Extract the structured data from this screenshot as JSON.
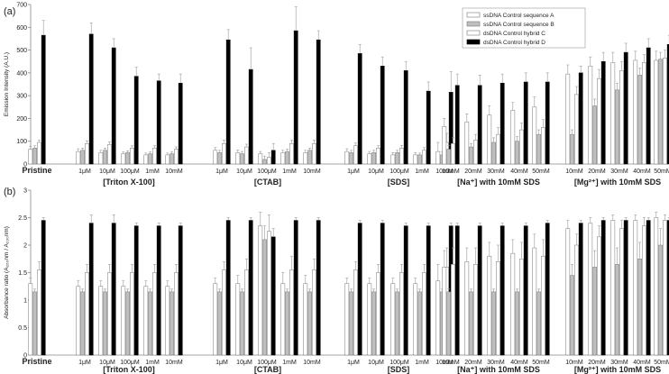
{
  "chart_data": [
    {
      "type": "bar",
      "panel_label": "(a)",
      "ylabel": "Emission Intensity (A.U.)",
      "ylim": [
        0,
        700
      ],
      "yticks": [
        0,
        100,
        200,
        300,
        400,
        500,
        600,
        700
      ],
      "gridlines": false,
      "legend": "top-right",
      "groups": [
        "Pristine",
        "[Triton X-100]",
        "[CTAB]",
        "[SDS]",
        "[Na⁺] with 10mM SDS",
        "[Mg²⁺] with 10mM SDS"
      ],
      "categories": [
        "Pristine",
        "1μM",
        "10μM",
        "100μM",
        "1mM",
        "10mM",
        "1μM",
        "10μM",
        "100μM",
        "1mM",
        "10mM",
        "1μM",
        "10μM",
        "100μM",
        "1mM",
        "10mM",
        "10mM",
        "20mM",
        "30mM",
        "40mM",
        "50mM",
        "10mM",
        "20mM",
        "30mM",
        "40mM",
        "50mM"
      ],
      "series": [
        {
          "name": "ssDNA Control sequence A",
          "color": "#ffffff",
          "values": [
            65,
            55,
            50,
            45,
            40,
            40,
            60,
            50,
            45,
            50,
            50,
            55,
            45,
            40,
            40,
            55,
            165,
            185,
            215,
            235,
            250,
            395,
            430,
            445,
            455,
            455
          ],
          "errors": [
            12,
            12,
            10,
            8,
            8,
            8,
            12,
            12,
            10,
            10,
            10,
            12,
            10,
            10,
            10,
            40,
            35,
            35,
            40,
            35,
            45,
            40,
            40,
            45,
            40,
            40
          ]
        },
        {
          "name": "ssDNA Control sequence B",
          "color": "#bfbfbf",
          "values": [
            70,
            60,
            60,
            50,
            45,
            45,
            50,
            45,
            20,
            55,
            60,
            50,
            50,
            50,
            40,
            40,
            65,
            75,
            95,
            100,
            130,
            130,
            255,
            325,
            390,
            460
          ],
          "errors": [
            10,
            10,
            10,
            8,
            8,
            8,
            10,
            10,
            15,
            10,
            10,
            10,
            10,
            10,
            8,
            15,
            15,
            15,
            20,
            20,
            20,
            20,
            30,
            30,
            30,
            30
          ]
        },
        {
          "name": "dsDNA Control hybrid C",
          "color": "#ffffff",
          "values": [
            95,
            90,
            85,
            70,
            70,
            65,
            90,
            75,
            30,
            90,
            90,
            80,
            70,
            70,
            60,
            95,
            90,
            105,
            130,
            150,
            160,
            305,
            375,
            410,
            445,
            465
          ],
          "errors": [
            10,
            12,
            12,
            10,
            10,
            10,
            15,
            12,
            20,
            15,
            15,
            12,
            10,
            12,
            12,
            40,
            25,
            25,
            30,
            30,
            35,
            35,
            40,
            40,
            35,
            35
          ]
        },
        {
          "name": "dsDNA Control hybrid D",
          "color": "#000000",
          "values": [
            565,
            570,
            510,
            385,
            365,
            355,
            545,
            415,
            60,
            585,
            545,
            485,
            430,
            410,
            320,
            315,
            345,
            345,
            355,
            360,
            360,
            400,
            450,
            490,
            510,
            525
          ],
          "errors": [
            65,
            50,
            40,
            40,
            30,
            40,
            45,
            95,
            30,
            105,
            40,
            40,
            40,
            40,
            40,
            90,
            50,
            45,
            40,
            40,
            40,
            30,
            40,
            40,
            40,
            40
          ]
        }
      ]
    },
    {
      "type": "bar",
      "panel_label": "(b)",
      "ylabel": "Absorbance ratio (A₂₆₀nm / A₂₃₀nm)",
      "ylim": [
        0,
        3
      ],
      "yticks": [
        0,
        0.5,
        1,
        1.5,
        2,
        2.5,
        3
      ],
      "gridlines": false,
      "groups": [
        "Pristine",
        "[Triton X-100]",
        "[CTAB]",
        "[SDS]",
        "[Na⁺] with 10mM SDS",
        "[Mg²⁺] with 10mM SDS"
      ],
      "categories": [
        "Pristine",
        "1μM",
        "10μM",
        "100μM",
        "1mM",
        "10mM",
        "1μM",
        "10μM",
        "100μM",
        "1mM",
        "10mM",
        "1μM",
        "10μM",
        "100μM",
        "1mM",
        "10mM",
        "10mM",
        "20mM",
        "30mM",
        "40mM",
        "50mM",
        "10mM",
        "20mM",
        "30mM",
        "40mM",
        "50mM"
      ],
      "series": [
        {
          "name": "ssDNA Control sequence A",
          "color": "#ffffff",
          "values": [
            1.3,
            1.25,
            1.25,
            1.25,
            1.25,
            1.25,
            1.3,
            1.3,
            2.35,
            1.3,
            1.3,
            1.3,
            1.3,
            1.3,
            1.3,
            1.35,
            1.6,
            1.7,
            1.8,
            1.85,
            1.95,
            2.3,
            2.4,
            2.45,
            2.45,
            2.5
          ],
          "errors": [
            0.1,
            0.1,
            0.1,
            0.1,
            0.1,
            0.1,
            0.1,
            0.15,
            0.25,
            0.2,
            0.15,
            0.1,
            0.1,
            0.1,
            0.1,
            0.3,
            0.3,
            0.25,
            0.25,
            0.25,
            0.25,
            0.15,
            0.1,
            0.1,
            0.1,
            0.1
          ]
        },
        {
          "name": "ssDNA Control sequence B",
          "color": "#bfbfbf",
          "values": [
            1.15,
            1.15,
            1.15,
            1.15,
            1.15,
            1.15,
            1.15,
            1.15,
            2.1,
            1.15,
            1.15,
            1.15,
            1.15,
            1.15,
            1.15,
            1.15,
            1.15,
            1.15,
            1.15,
            1.15,
            1.15,
            1.45,
            1.6,
            1.65,
            1.75,
            2.0
          ],
          "errors": [
            0.05,
            0.05,
            0.05,
            0.05,
            0.05,
            0.05,
            0.05,
            0.05,
            0.25,
            0.05,
            0.05,
            0.05,
            0.05,
            0.05,
            0.05,
            0.05,
            0.05,
            0.05,
            0.05,
            0.05,
            0.05,
            0.2,
            0.3,
            0.3,
            0.3,
            0.3
          ]
        },
        {
          "name": "dsDNA Control hybrid C",
          "color": "#ffffff",
          "values": [
            1.55,
            1.5,
            1.5,
            1.5,
            1.5,
            1.5,
            1.55,
            1.55,
            2.25,
            1.55,
            1.55,
            1.55,
            1.5,
            1.5,
            1.5,
            1.6,
            1.65,
            1.65,
            1.7,
            1.75,
            1.8,
            2.0,
            2.15,
            2.3,
            2.35,
            2.45
          ],
          "errors": [
            0.15,
            0.15,
            0.15,
            0.15,
            0.15,
            0.15,
            0.15,
            0.2,
            0.3,
            0.25,
            0.2,
            0.15,
            0.15,
            0.15,
            0.15,
            0.35,
            0.3,
            0.3,
            0.3,
            0.3,
            0.3,
            0.2,
            0.2,
            0.15,
            0.15,
            0.1
          ]
        },
        {
          "name": "dsDNA Control hybrid D",
          "color": "#000000",
          "values": [
            2.45,
            2.4,
            2.4,
            2.35,
            2.35,
            2.35,
            2.45,
            2.45,
            2.15,
            2.45,
            2.45,
            2.4,
            2.4,
            2.35,
            2.35,
            2.35,
            2.35,
            2.35,
            2.35,
            2.35,
            2.4,
            2.4,
            2.45,
            2.45,
            2.45,
            2.45
          ],
          "errors": [
            0.05,
            0.15,
            0.15,
            0.05,
            0.05,
            0.05,
            0.05,
            0.05,
            0.15,
            0.05,
            0.05,
            0.05,
            0.05,
            0.05,
            0.05,
            0.05,
            0.05,
            0.05,
            0.05,
            0.05,
            0.05,
            0.05,
            0.05,
            0.05,
            0.05,
            0.05
          ]
        }
      ]
    }
  ]
}
